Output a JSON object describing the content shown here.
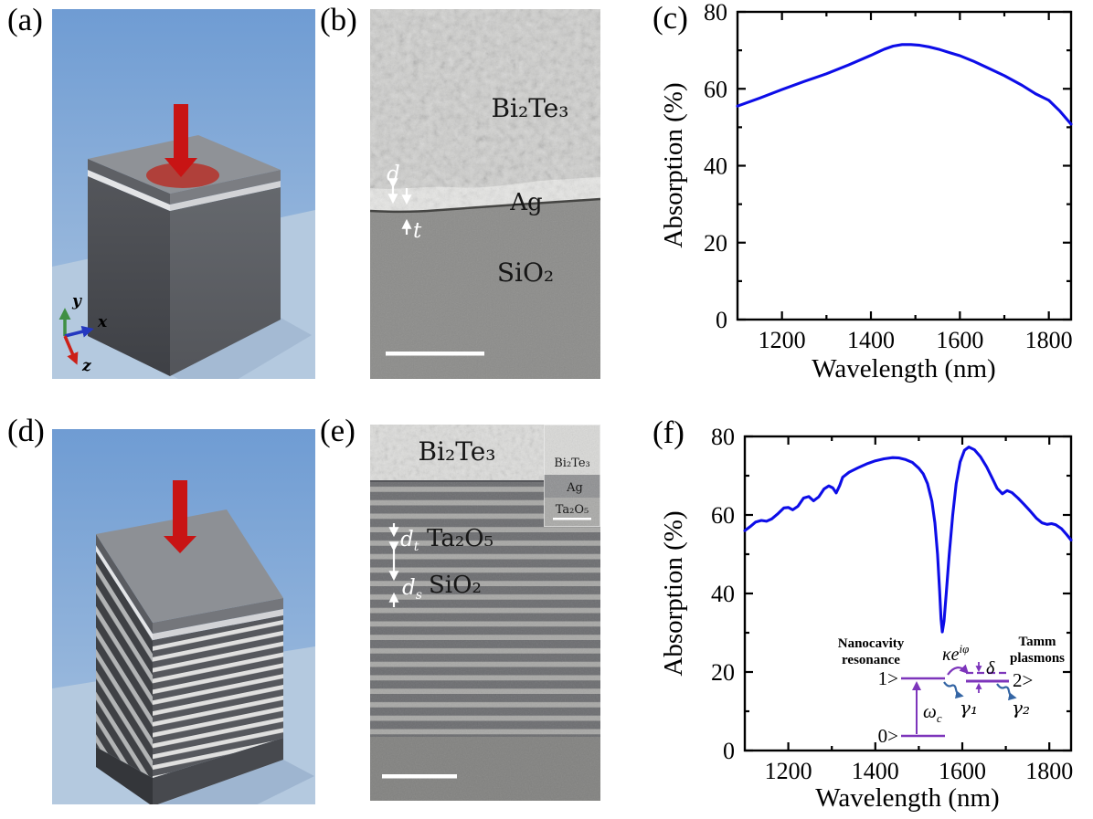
{
  "figure": {
    "panel_labels": {
      "a": "(a)",
      "b": "(b)",
      "c": "(c)",
      "d": "(d)",
      "e": "(e)",
      "f": "(f)"
    }
  },
  "colors": {
    "curve_blue": "#0d0de8",
    "incident_arrow": "#c81414",
    "laser_spot": "#b23c35",
    "inset_level_purple": "#7d35bb",
    "decay_arrow_blue": "#3465a4",
    "axis_x_blue": "#2438c0",
    "axis_y_green": "#3f8f44",
    "axis_z_red": "#cc2018"
  },
  "panel_a": {
    "axis_x": "x",
    "axis_y": "y",
    "axis_z": "z"
  },
  "panel_b": {
    "material_top": "Bi₂Te₃",
    "material_mid": "Ag",
    "material_bottom": "SiO₂",
    "dim_d": "d",
    "dim_t": "t"
  },
  "panel_e": {
    "material_top": "Bi₂Te₃",
    "dbr_high_index": "Ta₂O₅",
    "dbr_low_index": "SiO₂",
    "d_base": "d",
    "dt_sub": "t",
    "ds_sub": "s",
    "inset": {
      "top": "Bi₂Te₃",
      "mid": "Ag",
      "bottom": "Ta₂O₅"
    }
  },
  "panel_f_inset": {
    "left_title": [
      "Nanocavity",
      "resonance"
    ],
    "right_title": [
      "Tamm",
      "plasmons"
    ],
    "state0": "0>",
    "state1": "1>",
    "state2": "2>",
    "coupling_base": "κe",
    "coupling_sup": "iφ",
    "detuning": "δ",
    "drive_base": "ω",
    "drive_sub": "c",
    "decay1": "γ₁",
    "decay2": "γ₂"
  },
  "chart_data": [
    {
      "type": "line",
      "panel": "c",
      "title": "",
      "xlabel": "Wavelength (nm)",
      "ylabel": "Absorption (%)",
      "xlim": [
        1100,
        1850
      ],
      "ylim": [
        0,
        80
      ],
      "x_major_ticks": [
        1200,
        1400,
        1600,
        1800
      ],
      "x_minor_ticks": [
        1300,
        1500,
        1700
      ],
      "y_major_ticks": [
        0,
        20,
        40,
        60,
        80
      ],
      "y_minor_ticks": [
        10,
        30,
        50,
        70
      ],
      "grid": false,
      "legend": "none",
      "line_color": "#0d0de8",
      "series": [
        {
          "name": "absorption",
          "x": [
            1100,
            1150,
            1200,
            1250,
            1300,
            1350,
            1400,
            1415,
            1430,
            1450,
            1470,
            1490,
            1510,
            1530,
            1555,
            1580,
            1600,
            1630,
            1660,
            1700,
            1740,
            1770,
            1800,
            1825,
            1850
          ],
          "y": [
            55.5,
            57.6,
            59.8,
            61.9,
            63.9,
            66.2,
            68.7,
            69.5,
            70.3,
            71.1,
            71.5,
            71.5,
            71.3,
            70.9,
            70.2,
            69.3,
            68.6,
            67.2,
            65.6,
            63.4,
            60.9,
            58.7,
            57.0,
            54.2,
            50.8
          ]
        }
      ]
    },
    {
      "type": "line",
      "panel": "f",
      "title": "",
      "xlabel": "Wavelength (nm)",
      "ylabel": "Absorption (%)",
      "xlim": [
        1100,
        1850
      ],
      "ylim": [
        0,
        80
      ],
      "x_major_ticks": [
        1200,
        1400,
        1600,
        1800
      ],
      "x_minor_ticks": [
        1300,
        1500,
        1700
      ],
      "y_major_ticks": [
        0,
        20,
        40,
        60,
        80
      ],
      "y_minor_ticks": [
        10,
        30,
        50,
        70
      ],
      "grid": false,
      "legend": "none",
      "line_color": "#0d0de8",
      "series": [
        {
          "name": "absorption",
          "x": [
            1100,
            1112,
            1125,
            1138,
            1150,
            1162,
            1175,
            1190,
            1200,
            1210,
            1222,
            1235,
            1247,
            1258,
            1270,
            1282,
            1293,
            1302,
            1310,
            1318,
            1325,
            1340,
            1360,
            1380,
            1400,
            1420,
            1440,
            1455,
            1470,
            1485,
            1500,
            1510,
            1520,
            1530,
            1537,
            1543,
            1548,
            1551,
            1554,
            1558,
            1563,
            1570,
            1578,
            1586,
            1595,
            1605,
            1615,
            1628,
            1642,
            1656,
            1668,
            1680,
            1692,
            1703,
            1714,
            1728,
            1742,
            1756,
            1770,
            1783,
            1795,
            1805,
            1815,
            1828,
            1840,
            1850
          ],
          "y": [
            56.0,
            57.0,
            58.2,
            58.6,
            58.4,
            59.0,
            60.2,
            61.8,
            61.9,
            61.3,
            62.2,
            64.3,
            64.7,
            63.6,
            64.6,
            66.6,
            67.4,
            66.9,
            65.6,
            67.5,
            69.6,
            70.9,
            72.0,
            73.0,
            73.8,
            74.3,
            74.6,
            74.5,
            74.1,
            73.4,
            71.9,
            70.5,
            68.0,
            63.5,
            58.0,
            50.0,
            40.5,
            33.5,
            30.2,
            33.0,
            40.0,
            50.0,
            60.0,
            68.0,
            73.5,
            76.5,
            77.3,
            76.6,
            74.8,
            72.2,
            69.5,
            66.8,
            65.4,
            66.2,
            65.7,
            64.3,
            62.7,
            61.0,
            59.2,
            58.0,
            57.6,
            57.8,
            57.5,
            56.5,
            55.0,
            53.6
          ]
        }
      ]
    }
  ]
}
